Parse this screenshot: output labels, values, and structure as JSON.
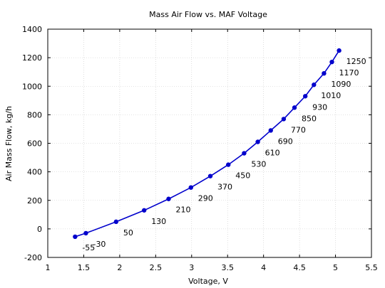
{
  "chart_data": {
    "type": "line",
    "title": "Mass Air Flow vs. MAF Voltage",
    "xlabel": "Voltage, V",
    "ylabel": "Air Mass Flow, kg/h",
    "xlim": [
      1,
      5.5
    ],
    "ylim": [
      -200,
      1400
    ],
    "xticks": [
      1,
      1.5,
      2,
      2.5,
      3,
      3.5,
      4,
      4.5,
      5,
      5.5
    ],
    "xtick_labels": [
      "1",
      "1.5",
      "2",
      "2.5",
      "3",
      "3.5",
      "4",
      "4.5",
      "5",
      "5.5"
    ],
    "yticks": [
      -200,
      0,
      200,
      400,
      600,
      800,
      1000,
      1200,
      1400
    ],
    "ytick_labels": [
      "-200",
      "0",
      "200",
      "400",
      "600",
      "800",
      "1000",
      "1200",
      "1400"
    ],
    "grid": true,
    "legend": "none",
    "series_color": "#0000cc",
    "series": [
      {
        "x": [
          1.38,
          1.53,
          1.95,
          2.34,
          2.68,
          2.99,
          3.26,
          3.51,
          3.73,
          3.92,
          4.1,
          4.28,
          4.43,
          4.58,
          4.7,
          4.84,
          4.95,
          5.05
        ],
        "y": [
          -55,
          -30,
          50,
          130,
          210,
          290,
          370,
          450,
          530,
          610,
          690,
          770,
          850,
          930,
          1010,
          1090,
          1170,
          1250
        ],
        "labels": [
          "-55",
          "-30",
          "50",
          "130",
          "210",
          "290",
          "370",
          "450",
          "530",
          "610",
          "690",
          "770",
          "850",
          "930",
          "1010",
          "1090",
          "1170",
          "1250"
        ]
      }
    ]
  }
}
